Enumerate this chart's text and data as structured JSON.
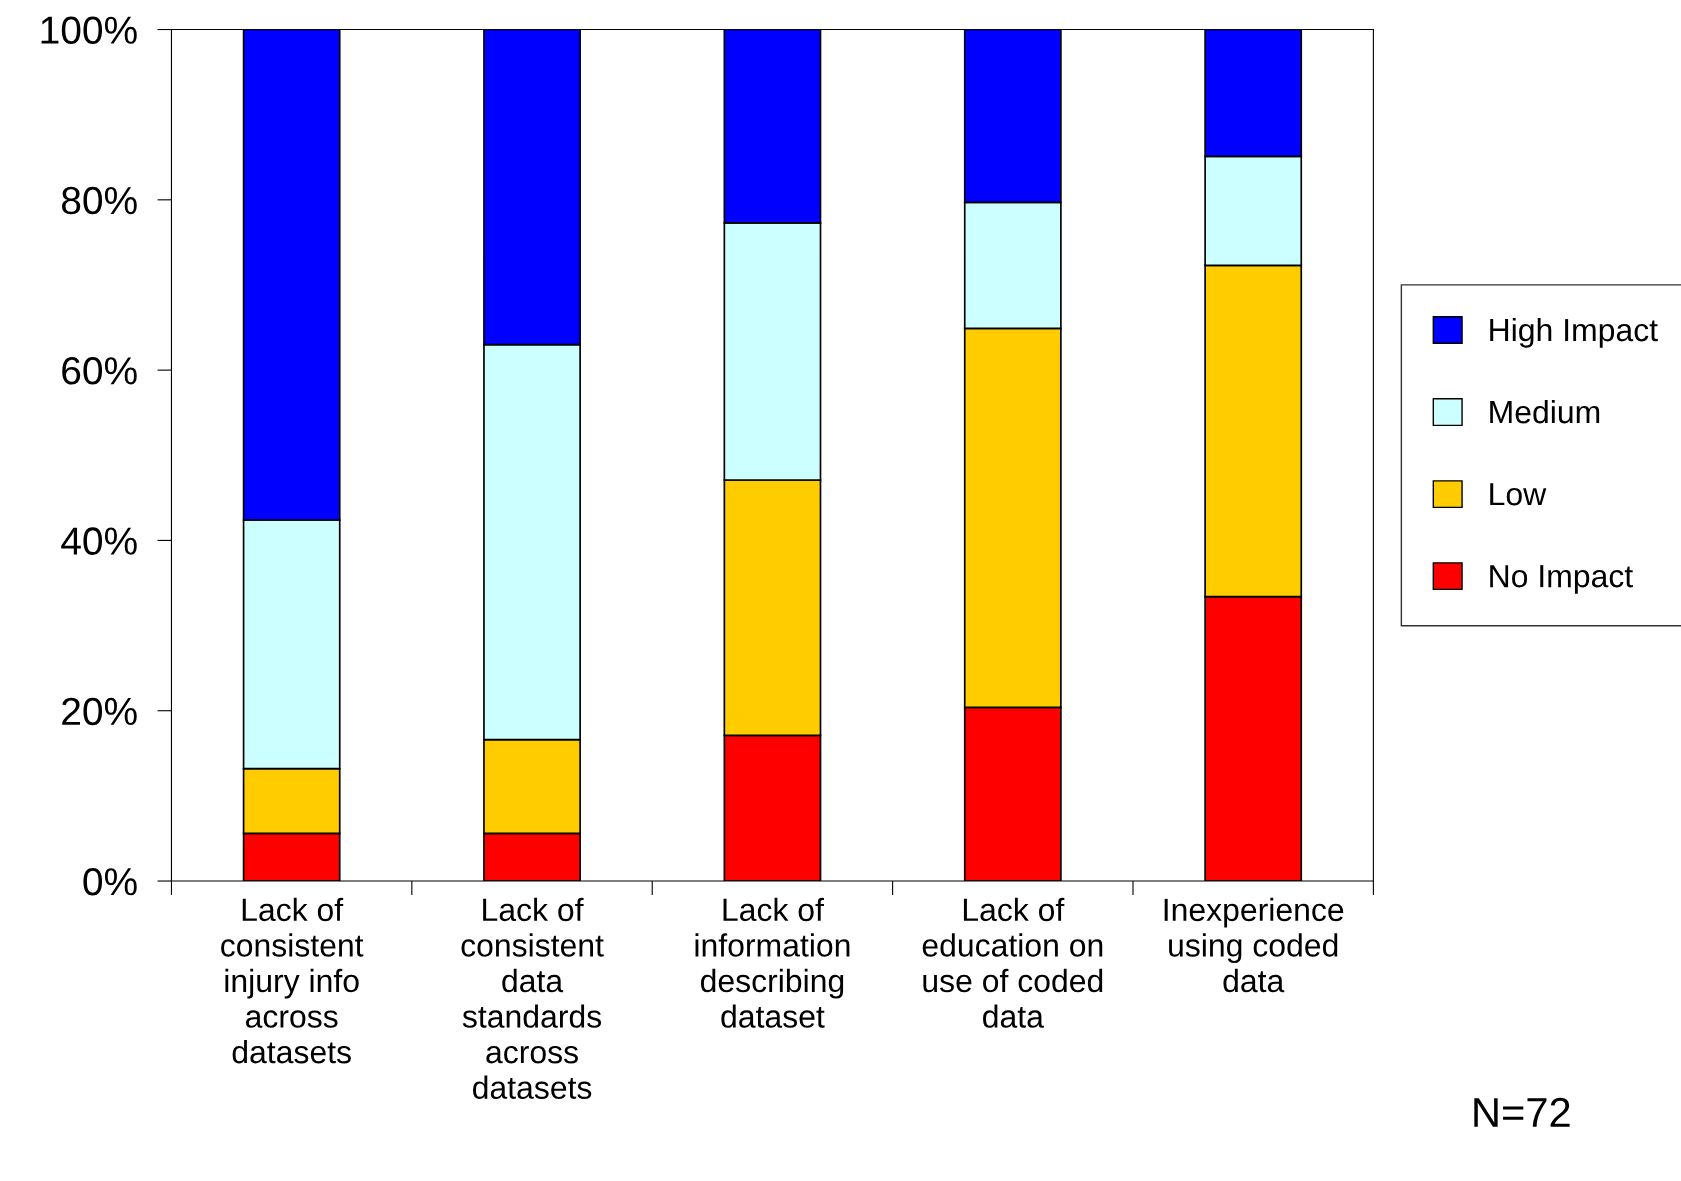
{
  "chart_data": {
    "type": "bar",
    "stacked": true,
    "categories": [
      "Lack of\nconsistent\ninjury info\nacross\ndatasets",
      "Lack of\nconsistent\ndata\nstandards\nacross\ndatasets",
      "Lack of\ninformation\ndescribing\ndataset",
      "Lack of\neducation on\nuse of coded\ndata",
      "Inexperience\nusing coded\ndata"
    ],
    "series": [
      {
        "name": "No Impact",
        "color": "#ff0000",
        "values": [
          5.6,
          5.6,
          17.1,
          20.4,
          33.4
        ]
      },
      {
        "name": "Low",
        "color": "#ffcc00",
        "values": [
          7.6,
          11.0,
          30.0,
          44.5,
          38.9
        ]
      },
      {
        "name": "Medium",
        "color": "#ccffff",
        "values": [
          29.2,
          46.4,
          30.2,
          14.8,
          12.8
        ]
      },
      {
        "name": "High Impact",
        "color": "#0000ff",
        "values": [
          57.6,
          37.0,
          22.7,
          20.3,
          14.9
        ]
      }
    ],
    "ylim": [
      0,
      100
    ],
    "yticks": [
      {
        "value": 0,
        "label": "0%"
      },
      {
        "value": 20,
        "label": "20%"
      },
      {
        "value": 40,
        "label": "40%"
      },
      {
        "value": 60,
        "label": "60%"
      },
      {
        "value": 80,
        "label": "80%"
      },
      {
        "value": 100,
        "label": "100%"
      }
    ],
    "grid": false,
    "legend": "right",
    "annotations": [
      "N=72"
    ]
  }
}
